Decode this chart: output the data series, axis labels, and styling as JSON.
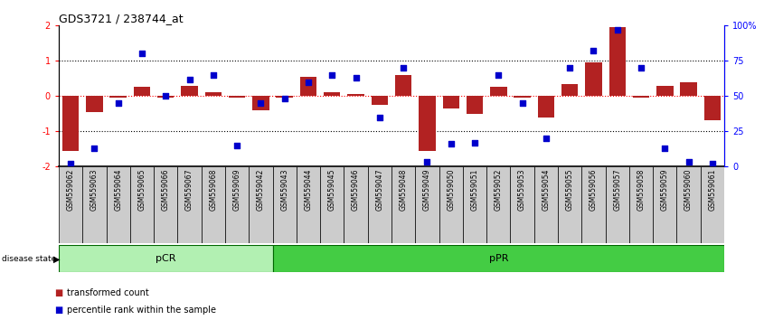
{
  "title": "GDS3721 / 238744_at",
  "samples": [
    "GSM559062",
    "GSM559063",
    "GSM559064",
    "GSM559065",
    "GSM559066",
    "GSM559067",
    "GSM559068",
    "GSM559069",
    "GSM559042",
    "GSM559043",
    "GSM559044",
    "GSM559045",
    "GSM559046",
    "GSM559047",
    "GSM559048",
    "GSM559049",
    "GSM559050",
    "GSM559051",
    "GSM559052",
    "GSM559053",
    "GSM559054",
    "GSM559055",
    "GSM559056",
    "GSM559057",
    "GSM559058",
    "GSM559059",
    "GSM559060",
    "GSM559061"
  ],
  "bar_values": [
    -1.55,
    -0.45,
    -0.05,
    0.25,
    -0.05,
    0.3,
    0.1,
    -0.05,
    -0.4,
    -0.05,
    0.55,
    0.1,
    0.05,
    -0.25,
    0.6,
    -1.55,
    -0.35,
    -0.5,
    0.25,
    -0.05,
    -0.6,
    0.35,
    0.95,
    1.95,
    -0.05,
    0.3,
    0.4,
    -0.7
  ],
  "pct_values": [
    2,
    13,
    45,
    80,
    50,
    62,
    65,
    15,
    45,
    48,
    60,
    65,
    63,
    35,
    70,
    3,
    16,
    17,
    65,
    45,
    20,
    70,
    82,
    97,
    70,
    13,
    3,
    2
  ],
  "group_labels": [
    "pCR",
    "pPR"
  ],
  "group_boundaries": [
    0,
    9,
    28
  ],
  "group_colors_hex": [
    "#b2f0b2",
    "#44cc44"
  ],
  "bar_color": "#b22222",
  "dot_color": "#0000cc",
  "ylim_left": [
    -2,
    2
  ],
  "ylim_right": [
    0,
    100
  ],
  "yticks_left": [
    -2,
    -1,
    0,
    1,
    2
  ],
  "yticks_right": [
    0,
    25,
    50,
    75,
    100
  ],
  "ytick_labels_right": [
    "0",
    "25",
    "50",
    "75",
    "100%"
  ],
  "hline_dotted_vals": [
    -1,
    1
  ],
  "hline_zero_val": 0,
  "disease_state_label": "disease state",
  "legend_items": [
    {
      "label": "transformed count",
      "color": "#b22222"
    },
    {
      "label": "percentile rank within the sample",
      "color": "#0000cc"
    }
  ]
}
